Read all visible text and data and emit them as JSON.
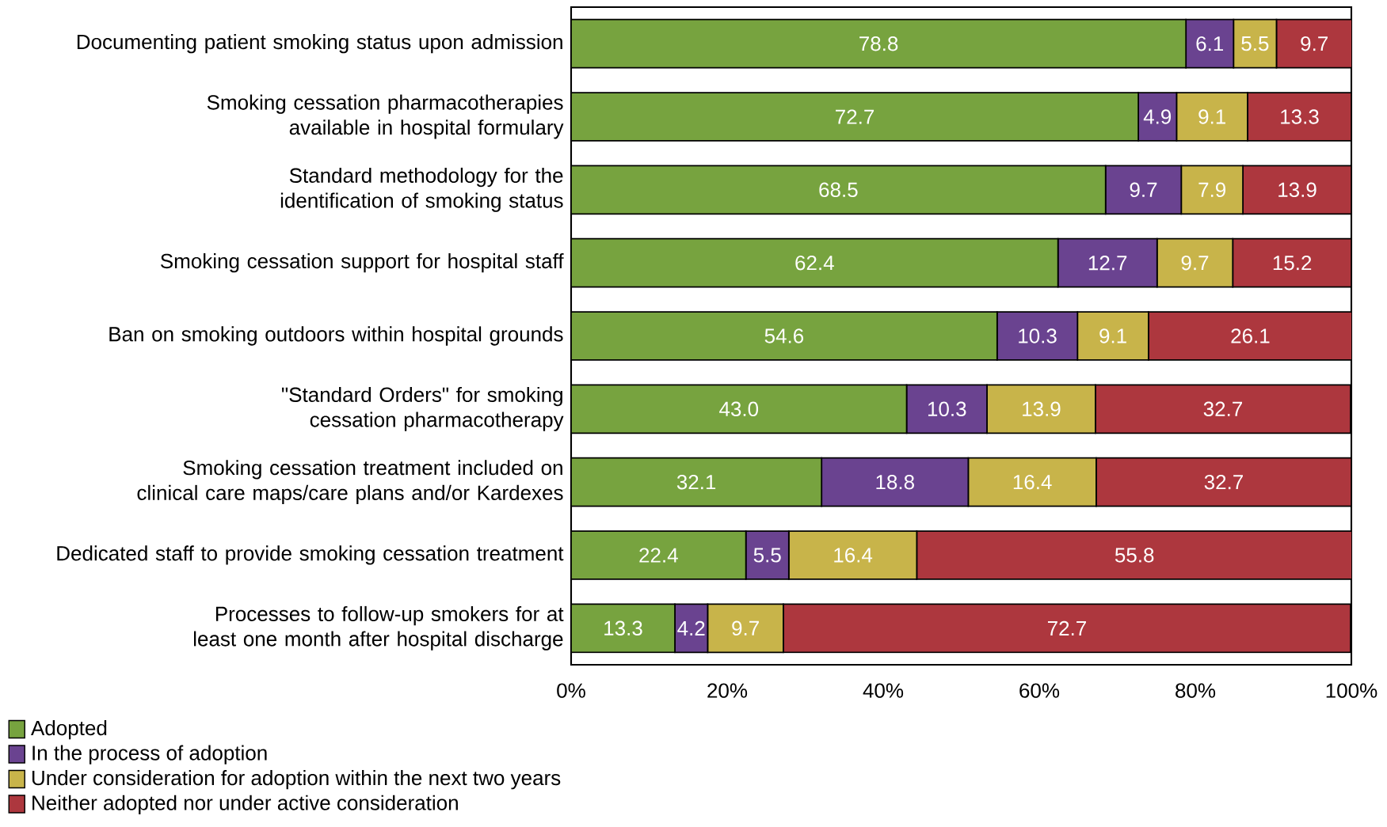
{
  "chart_data": {
    "type": "bar",
    "orientation": "horizontal",
    "stacked": true,
    "categories": [
      "Documenting patient smoking status upon admission",
      "Smoking cessation pharmacotherapies available in hospital formulary",
      "Standard methodology for the identification of smoking status",
      "Smoking cessation support for hospital staff",
      "Ban on smoking outdoors within hospital grounds",
      "\"Standard Orders\" for smoking cessation pharmacotherapy",
      "Smoking cessation treatment included on clinical care maps/care plans and/or Kardexes",
      "Dedicated staff to provide smoking cessation treatment",
      "Processes to follow-up smokers for at least one month after hospital discharge"
    ],
    "series": [
      {
        "name": "Adopted",
        "color": "#77a33f",
        "values": [
          78.8,
          72.7,
          68.5,
          62.4,
          54.6,
          43.0,
          32.1,
          22.4,
          13.3
        ],
        "value_labels": [
          "78.8",
          "72.7",
          "68.5",
          "62.4",
          "54.6",
          "43.0",
          "32.1",
          "22.4",
          "13.3"
        ]
      },
      {
        "name": "In the process of adoption",
        "color": "#6a4390",
        "values": [
          6.1,
          4.9,
          9.7,
          12.7,
          10.3,
          10.3,
          18.8,
          5.5,
          4.2
        ],
        "value_labels": [
          "6.1",
          "4.9",
          "9.7",
          "12.7",
          "10.3",
          "10.3",
          "18.8",
          "5.5",
          "4.2"
        ]
      },
      {
        "name": "Under consideration for adoption within the next two years",
        "color": "#c8b44a",
        "values": [
          5.5,
          9.1,
          7.9,
          9.7,
          9.1,
          13.9,
          16.4,
          16.4,
          9.7
        ],
        "value_labels": [
          "5.5",
          "9.1",
          "7.9",
          "9.7",
          "9.1",
          "13.9",
          "16.4",
          "16.4",
          "9.7"
        ]
      },
      {
        "name": "Neither adopted nor under active consideration",
        "color": "#ad373e",
        "values": [
          9.7,
          13.3,
          13.9,
          15.2,
          26.1,
          32.7,
          32.7,
          55.8,
          72.7
        ],
        "value_labels": [
          "9.7",
          "13.3",
          "13.9",
          "15.2",
          "26.1",
          "32.7",
          "32.7",
          "55.8",
          "72.7"
        ]
      }
    ],
    "xlim": [
      0,
      100
    ],
    "xticks": [
      {
        "value": 0,
        "label": "0%"
      },
      {
        "value": 20,
        "label": "20%"
      },
      {
        "value": 40,
        "label": "40%"
      },
      {
        "value": 60,
        "label": "60%"
      },
      {
        "value": 80,
        "label": "80%"
      },
      {
        "value": 100,
        "label": "100%"
      }
    ],
    "grid": false,
    "legend": "bottom left"
  }
}
